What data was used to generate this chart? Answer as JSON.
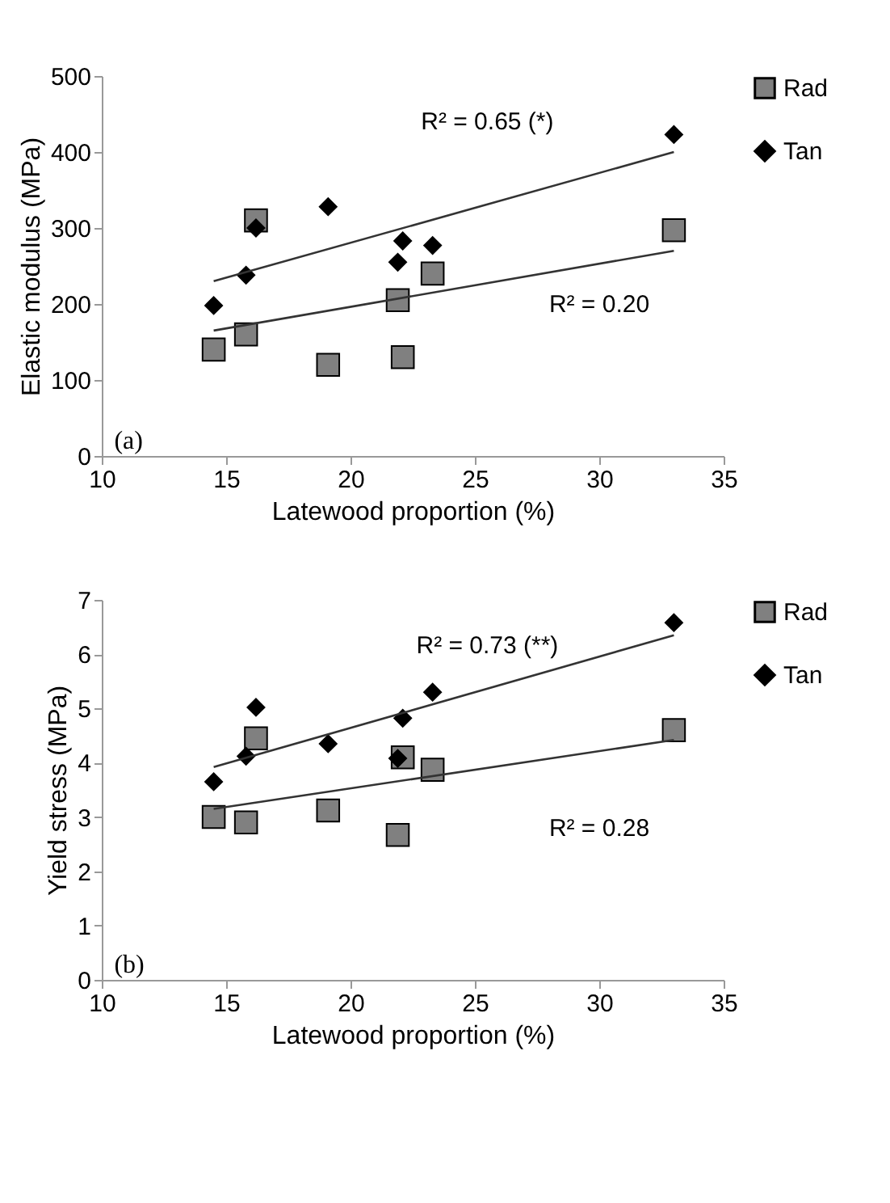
{
  "chart_data": [
    {
      "type": "scatter",
      "xlabel": "Latewood proportion (%)",
      "ylabel": "Elastic modulus (MPa)",
      "xlim": [
        10,
        35
      ],
      "xticks": [
        10,
        15,
        20,
        25,
        30,
        35
      ],
      "ylim": [
        0,
        500
      ],
      "yticks": [
        0,
        100,
        200,
        300,
        400,
        500
      ],
      "grid": false,
      "legend": "right",
      "series": [
        {
          "name": "Rad",
          "color": "#808080",
          "marker": "square",
          "x": [
            14.5,
            15.8,
            16.2,
            19.1,
            21.9,
            22.1,
            23.3,
            33
          ],
          "values": [
            140,
            160,
            310,
            120,
            205,
            130,
            240,
            297
          ]
        },
        {
          "name": "Tan",
          "color": "#000000",
          "marker": "diamond",
          "x": [
            14.5,
            15.8,
            16.2,
            19.1,
            21.9,
            22.1,
            23.3,
            33
          ],
          "values": [
            198,
            238,
            300,
            328,
            255,
            283,
            277,
            423
          ]
        },
        {
          "type": "line",
          "color": "#333333",
          "marker": "none",
          "x": [
            14.5,
            33
          ],
          "values": [
            230,
            400
          ]
        },
        {
          "type": "line",
          "color": "#333333",
          "marker": "none",
          "x": [
            14.5,
            33
          ],
          "values": [
            165,
            270
          ]
        }
      ],
      "annotations": [
        "R² = 0.65 (*)",
        "R² = 0.20",
        "(a)"
      ]
    },
    {
      "type": "scatter",
      "xlabel": "Latewood proportion (%)",
      "ylabel": "Yield stress (MPa)",
      "xlim": [
        10,
        35
      ],
      "xticks": [
        10,
        15,
        20,
        25,
        30,
        35
      ],
      "ylim": [
        0,
        7
      ],
      "yticks": [
        0,
        1,
        2,
        3,
        4,
        5,
        6,
        7
      ],
      "grid": false,
      "legend": "right",
      "series": [
        {
          "name": "Rad",
          "color": "#808080",
          "marker": "square",
          "x": [
            14.5,
            15.8,
            16.2,
            19.1,
            21.9,
            22.1,
            23.3,
            33
          ],
          "values": [
            3.0,
            2.9,
            4.45,
            3.12,
            2.67,
            4.1,
            3.87,
            4.6
          ]
        },
        {
          "name": "Tan",
          "color": "#000000",
          "marker": "diamond",
          "x": [
            14.5,
            15.8,
            16.2,
            19.1,
            21.9,
            22.1,
            23.3,
            33
          ],
          "values": [
            3.65,
            4.12,
            5.02,
            4.35,
            4.08,
            4.82,
            5.3,
            6.58
          ]
        },
        {
          "type": "line",
          "color": "#333333",
          "marker": "none",
          "x": [
            14.5,
            33
          ],
          "values": [
            3.92,
            6.35
          ]
        },
        {
          "type": "line",
          "color": "#333333",
          "marker": "none",
          "x": [
            14.5,
            33
          ],
          "values": [
            3.15,
            4.42
          ]
        }
      ],
      "annotations": [
        "R² = 0.73 (**)",
        "R² = 0.28",
        "(b)"
      ]
    }
  ]
}
